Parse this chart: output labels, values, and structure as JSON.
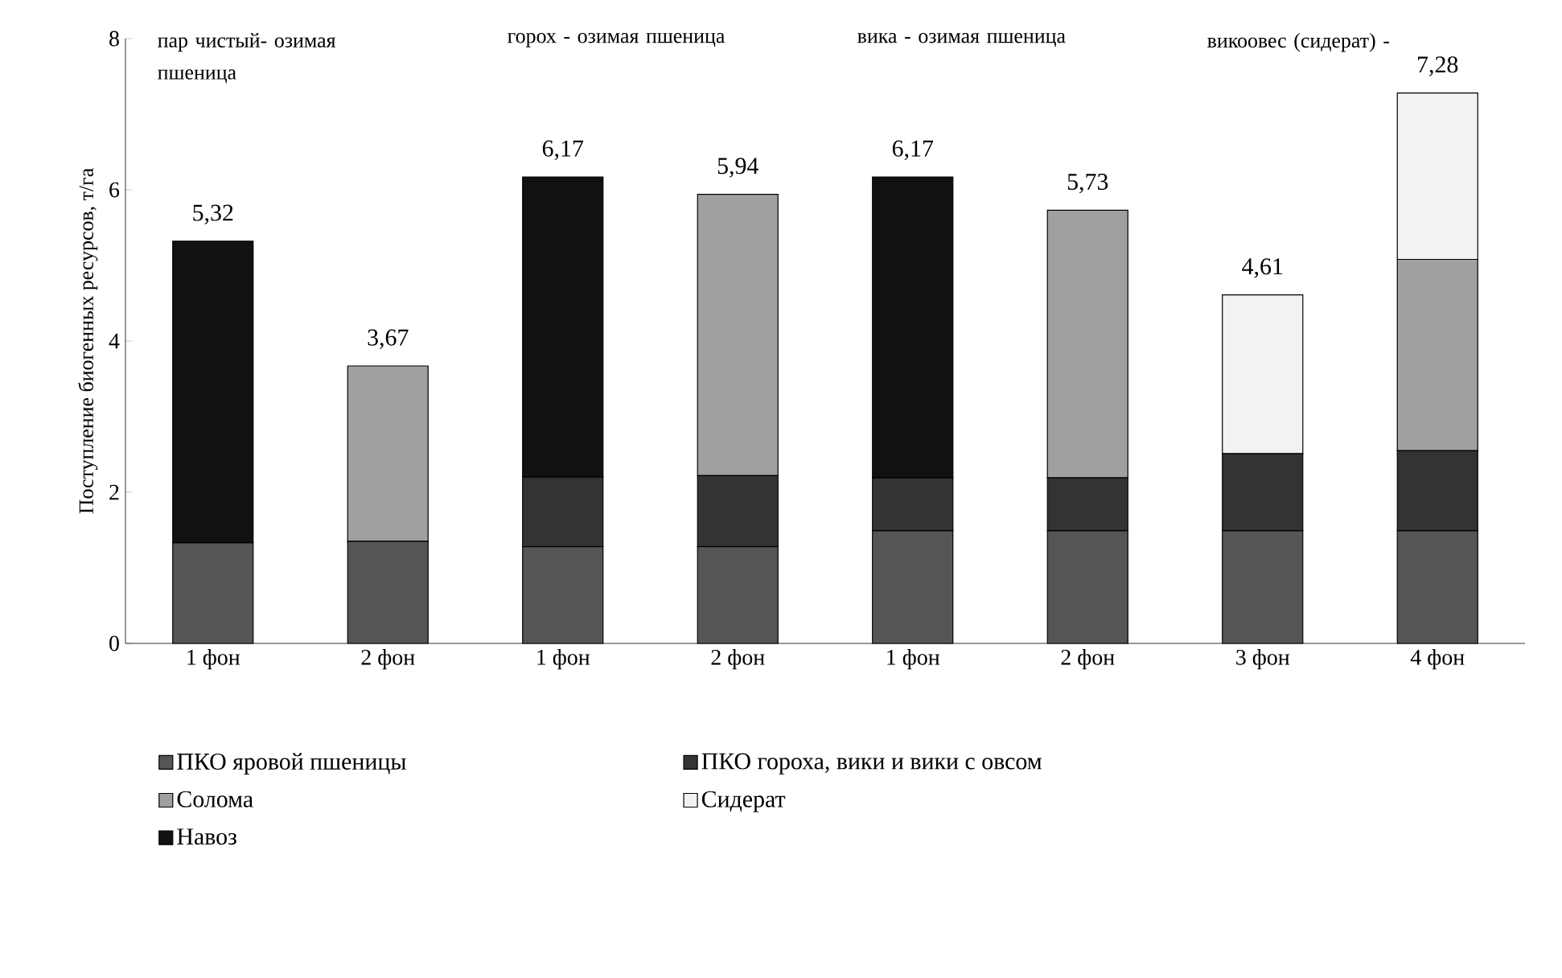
{
  "chart_data": {
    "type": "bar",
    "stacked": true,
    "ylabel": "Поступление биогенных ресурсов, т/га",
    "categories": [
      "1 фон",
      "2 фон",
      "1 фон",
      "2 фон",
      "1 фон",
      "2 фон",
      "3 фон",
      "4 фон"
    ],
    "series": [
      {
        "name": "ПКО яровой пшеницы",
        "color": "#555555",
        "values": [
          1.33,
          1.35,
          1.28,
          1.28,
          1.49,
          1.49,
          1.49,
          1.49
        ]
      },
      {
        "name": "ПКО гороха, вики и вики с овсом",
        "color": "#333333",
        "values": [
          null,
          null,
          0.92,
          0.94,
          0.7,
          0.7,
          1.02,
          1.06
        ]
      },
      {
        "name": "Солома",
        "color": "#a0a0a0",
        "values": [
          null,
          2.32,
          null,
          3.72,
          null,
          3.54,
          null,
          2.53
        ]
      },
      {
        "name": "Сидерат",
        "color": "#f2f2f2",
        "values": [
          null,
          null,
          null,
          null,
          null,
          null,
          2.1,
          2.2
        ]
      },
      {
        "name": "Навоз",
        "color": "#111111",
        "values": [
          3.99,
          null,
          3.97,
          null,
          3.98,
          null,
          null,
          null
        ]
      }
    ],
    "totals": [
      "5,32",
      "3,67",
      "6,17",
      "5,94",
      "6,17",
      "5,73",
      "4,61",
      "7,28"
    ],
    "annotations": [
      "пар чистый- озимая пшеница",
      "горох - озимая пшеница",
      "вика - озимая пшеница",
      "викоовес (сидерат) -"
    ],
    "ylim": [
      0,
      8
    ],
    "yticks": [
      0,
      2,
      4,
      6,
      8
    ],
    "grid": false,
    "legend": "bottom"
  }
}
